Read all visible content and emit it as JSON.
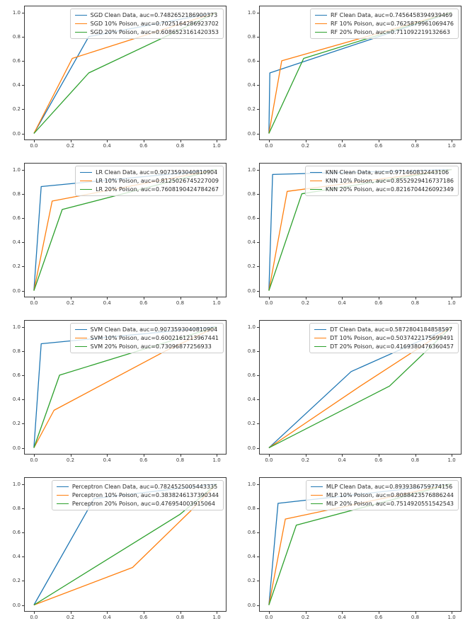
{
  "figure": {
    "background": "#ffffff",
    "layout": {
      "rows": 4,
      "cols": 2
    },
    "palette": {
      "clean": "#1f77b4",
      "poison_10": "#ff7f0e",
      "poison_20": "#2ca02c"
    },
    "spine_color": "#3a3a3a"
  },
  "chart_data": [
    {
      "type": "line",
      "model": "SGD",
      "row": 0,
      "col": 0,
      "title": "",
      "xlabel": "",
      "ylabel": "",
      "xlim": [
        -0.05,
        1.05
      ],
      "ylim": [
        -0.05,
        1.05
      ],
      "tick_values": [
        0,
        0.2,
        0.4,
        0.6,
        0.8,
        1.0
      ],
      "x_tick_labels": [
        "0.0",
        "0.2",
        "0.4",
        "0.6",
        "0.8",
        "1.0"
      ],
      "y_tick_labels": [
        "0.0",
        "0.2",
        "0.4",
        "0.6",
        "0.8",
        "1.0"
      ],
      "grid_on": false,
      "legend_location": "upper right",
      "series": [
        {
          "name": "SGD Clean Data",
          "auc": "0.7482652186900373",
          "label": "SGD Clean Data, auc=0.7482652186900373",
          "color": "#1f77b4",
          "points": [
            [
              0,
              0
            ],
            [
              0.3,
              0.8
            ],
            [
              1,
              1
            ]
          ]
        },
        {
          "name": "SGD 10% Poison",
          "auc": "0.7025164286923702",
          "label": "SGD 10% Poison, auc=0.7025164286923702",
          "color": "#ff7f0e",
          "points": [
            [
              0,
              0
            ],
            [
              0.21,
              0.62
            ],
            [
              1,
              1
            ]
          ]
        },
        {
          "name": "SGD 20% Poison",
          "auc": "0.6086523161420353",
          "label": "SGD 20% Poison, auc=0.6086523161420353",
          "color": "#2ca02c",
          "points": [
            [
              0,
              0
            ],
            [
              0.3,
              0.5
            ],
            [
              1,
              1
            ]
          ]
        }
      ]
    },
    {
      "type": "line",
      "model": "RF",
      "row": 0,
      "col": 1,
      "title": "",
      "xlabel": "",
      "ylabel": "",
      "xlim": [
        -0.05,
        1.05
      ],
      "ylim": [
        -0.05,
        1.05
      ],
      "tick_values": [
        0,
        0.2,
        0.4,
        0.6,
        0.8,
        1.0
      ],
      "x_tick_labels": [
        "0.0",
        "0.2",
        "0.4",
        "0.6",
        "0.8",
        "1.0"
      ],
      "y_tick_labels": [
        "0.0",
        "0.2",
        "0.4",
        "0.6",
        "0.8",
        "1.0"
      ],
      "grid_on": false,
      "legend_location": "upper right",
      "series": [
        {
          "name": "RF Clean Data",
          "auc": "0.7456458394939469",
          "label": "RF Clean Data, auc=0.7456458394939469",
          "color": "#1f77b4",
          "points": [
            [
              0,
              0
            ],
            [
              0.005,
              0.5
            ],
            [
              1,
              1
            ]
          ]
        },
        {
          "name": "RF 10% Poison",
          "auc": "0.7625879961069476",
          "label": "RF 10% Poison, auc=0.7625879961069476",
          "color": "#ff7f0e",
          "points": [
            [
              0,
              0
            ],
            [
              0.07,
              0.6
            ],
            [
              1,
              1
            ]
          ]
        },
        {
          "name": "RF 20% Poison",
          "auc": "0.711092219132663",
          "label": "RF 20% Poison, auc=0.711092219132663",
          "color": "#2ca02c",
          "points": [
            [
              0,
              0
            ],
            [
              0.19,
              0.62
            ],
            [
              1,
              1
            ]
          ]
        }
      ]
    },
    {
      "type": "line",
      "model": "LR",
      "row": 1,
      "col": 0,
      "title": "",
      "xlabel": "",
      "ylabel": "",
      "xlim": [
        -0.05,
        1.05
      ],
      "ylim": [
        -0.05,
        1.05
      ],
      "tick_values": [
        0,
        0.2,
        0.4,
        0.6,
        0.8,
        1.0
      ],
      "x_tick_labels": [
        "0.0",
        "0.2",
        "0.4",
        "0.6",
        "0.8",
        "1.0"
      ],
      "y_tick_labels": [
        "0.0",
        "0.2",
        "0.4",
        "0.6",
        "0.8",
        "1.0"
      ],
      "grid_on": false,
      "legend_location": "upper right",
      "series": [
        {
          "name": "LR Clean Data",
          "auc": "0.9073593040810904",
          "label": "LR Clean Data, auc=0.9073593040810904",
          "color": "#1f77b4",
          "points": [
            [
              0,
              0
            ],
            [
              0.04,
              0.86
            ],
            [
              1,
              1
            ]
          ]
        },
        {
          "name": "LR 10% Poison",
          "auc": "0.8125026745227009",
          "label": "LR 10% Poison, auc=0.8125026745227009",
          "color": "#ff7f0e",
          "points": [
            [
              0,
              0
            ],
            [
              0.1,
              0.74
            ],
            [
              1,
              1
            ]
          ]
        },
        {
          "name": "LR 20% Poison",
          "auc": "0.7608190424784267",
          "label": "LR 20% Poison, auc=0.7608190424784267",
          "color": "#2ca02c",
          "points": [
            [
              0,
              0
            ],
            [
              0.155,
              0.67
            ],
            [
              1,
              1
            ]
          ]
        }
      ]
    },
    {
      "type": "line",
      "model": "KNN",
      "row": 1,
      "col": 1,
      "title": "",
      "xlabel": "",
      "ylabel": "",
      "xlim": [
        -0.05,
        1.05
      ],
      "ylim": [
        -0.05,
        1.05
      ],
      "tick_values": [
        0,
        0.2,
        0.4,
        0.6,
        0.8,
        1.0
      ],
      "x_tick_labels": [
        "0.0",
        "0.2",
        "0.4",
        "0.6",
        "0.8",
        "1.0"
      ],
      "y_tick_labels": [
        "0.0",
        "0.2",
        "0.4",
        "0.6",
        "0.8",
        "1.0"
      ],
      "grid_on": false,
      "legend_location": "upper right",
      "series": [
        {
          "name": "KNN Clean Data",
          "auc": "0.971460832443106",
          "label": "KNN Clean Data, auc=0.971460832443106",
          "color": "#1f77b4",
          "points": [
            [
              0,
              0
            ],
            [
              0.02,
              0.96
            ],
            [
              1,
              1
            ]
          ]
        },
        {
          "name": "KNN 10% Poison",
          "auc": "0.8552929416737186",
          "label": "KNN 10% Poison, auc=0.8552929416737186",
          "color": "#ff7f0e",
          "points": [
            [
              0,
              0
            ],
            [
              0.1,
              0.82
            ],
            [
              1,
              1
            ]
          ]
        },
        {
          "name": "KNN 20% Poison",
          "auc": "0.8216704426092349",
          "label": "KNN 20% Poison, auc=0.8216704426092349",
          "color": "#2ca02c",
          "points": [
            [
              0,
              0
            ],
            [
              0.18,
              0.8
            ],
            [
              1,
              1
            ]
          ]
        }
      ]
    },
    {
      "type": "line",
      "model": "SVM",
      "row": 2,
      "col": 0,
      "title": "",
      "xlabel": "",
      "ylabel": "",
      "xlim": [
        -0.05,
        1.05
      ],
      "ylim": [
        -0.05,
        1.05
      ],
      "tick_values": [
        0,
        0.2,
        0.4,
        0.6,
        0.8,
        1.0
      ],
      "x_tick_labels": [
        "0.0",
        "0.2",
        "0.4",
        "0.6",
        "0.8",
        "1.0"
      ],
      "y_tick_labels": [
        "0.0",
        "0.2",
        "0.4",
        "0.6",
        "0.8",
        "1.0"
      ],
      "grid_on": false,
      "legend_location": "upper right",
      "series": [
        {
          "name": "SVM Clean Data",
          "auc": "0.9073593040810904",
          "label": "SVM Clean Data, auc=0.9073593040810904",
          "color": "#1f77b4",
          "points": [
            [
              0,
              0
            ],
            [
              0.04,
              0.86
            ],
            [
              1,
              1
            ]
          ]
        },
        {
          "name": "SVM 10% Poison",
          "auc": "0.6002161213967441",
          "label": "SVM 10% Poison, auc=0.6002161213967441",
          "color": "#ff7f0e",
          "points": [
            [
              0,
              0
            ],
            [
              0.11,
              0.31
            ],
            [
              0.72,
              0.8
            ],
            [
              1,
              1
            ]
          ]
        },
        {
          "name": "SVM 20% Poison",
          "auc": "0.73096877256933",
          "label": "SVM 20% Poison, auc=0.73096877256933",
          "color": "#2ca02c",
          "points": [
            [
              0,
              0
            ],
            [
              0.14,
              0.6
            ],
            [
              1,
              1
            ]
          ]
        }
      ]
    },
    {
      "type": "line",
      "model": "DT",
      "row": 2,
      "col": 1,
      "title": "",
      "xlabel": "",
      "ylabel": "",
      "xlim": [
        -0.05,
        1.05
      ],
      "ylim": [
        -0.05,
        1.05
      ],
      "tick_values": [
        0,
        0.2,
        0.4,
        0.6,
        0.8,
        1.0
      ],
      "x_tick_labels": [
        "0.0",
        "0.2",
        "0.4",
        "0.6",
        "0.8",
        "1.0"
      ],
      "y_tick_labels": [
        "0.0",
        "0.2",
        "0.4",
        "0.6",
        "0.8",
        "1.0"
      ],
      "grid_on": false,
      "legend_location": "upper right",
      "series": [
        {
          "name": "DT Clean Data",
          "auc": "0.5872804184858597",
          "label": "DT Clean Data, auc=0.5872804184858597",
          "color": "#1f77b4",
          "points": [
            [
              0,
              0
            ],
            [
              0.45,
              0.63
            ],
            [
              1,
              1
            ]
          ]
        },
        {
          "name": "DT 10% Poison",
          "auc": "0.5037422175699491",
          "label": "DT 10% Poison, auc=0.5037422175699491",
          "color": "#ff7f0e",
          "points": [
            [
              0,
              0
            ],
            [
              0.5,
              0.51
            ],
            [
              1,
              1
            ]
          ]
        },
        {
          "name": "DT 20% Poison",
          "auc": "0.4169380476360457",
          "label": "DT 20% Poison, auc=0.4169380476360457",
          "color": "#2ca02c",
          "points": [
            [
              0,
              0
            ],
            [
              0.66,
              0.51
            ],
            [
              1,
              1
            ]
          ]
        }
      ]
    },
    {
      "type": "line",
      "model": "Perceptron",
      "row": 3,
      "col": 0,
      "title": "",
      "xlabel": "",
      "ylabel": "",
      "xlim": [
        -0.05,
        1.05
      ],
      "ylim": [
        -0.05,
        1.05
      ],
      "tick_values": [
        0,
        0.2,
        0.4,
        0.6,
        0.8,
        1.0
      ],
      "x_tick_labels": [
        "0.0",
        "0.2",
        "0.4",
        "0.6",
        "0.8",
        "1.0"
      ],
      "y_tick_labels": [
        "0.0",
        "0.2",
        "0.4",
        "0.6",
        "0.8",
        "1.0"
      ],
      "grid_on": false,
      "legend_location": "upper right",
      "series": [
        {
          "name": "Perceptron Clean Data",
          "auc": "0.7824525005443335",
          "label": "Perceptron Clean Data, auc=0.7824525005443335",
          "color": "#1f77b4",
          "points": [
            [
              0,
              0
            ],
            [
              0.33,
              0.88
            ],
            [
              1,
              1
            ]
          ]
        },
        {
          "name": "Perceptron 10% Poison",
          "auc": "0.3838246137390344",
          "label": "Perceptron 10% Poison, auc=0.3838246137390344",
          "color": "#ff7f0e",
          "points": [
            [
              0,
              0
            ],
            [
              0.54,
              0.31
            ],
            [
              0.86,
              0.78
            ],
            [
              1,
              1
            ]
          ]
        },
        {
          "name": "Perceptron 20% Poison",
          "auc": "0.476954003915064",
          "label": "Perceptron 20% Poison, auc=0.476954003915064",
          "color": "#2ca02c",
          "points": [
            [
              0,
              0
            ],
            [
              0.8,
              0.75
            ],
            [
              1,
              1
            ]
          ]
        }
      ]
    },
    {
      "type": "line",
      "model": "MLP",
      "row": 3,
      "col": 1,
      "title": "",
      "xlabel": "",
      "ylabel": "",
      "xlim": [
        -0.05,
        1.05
      ],
      "ylim": [
        -0.05,
        1.05
      ],
      "tick_values": [
        0,
        0.2,
        0.4,
        0.6,
        0.8,
        1.0
      ],
      "x_tick_labels": [
        "0.0",
        "0.2",
        "0.4",
        "0.6",
        "0.8",
        "1.0"
      ],
      "y_tick_labels": [
        "0.0",
        "0.2",
        "0.4",
        "0.6",
        "0.8",
        "1.0"
      ],
      "grid_on": false,
      "legend_location": "upper right",
      "series": [
        {
          "name": "MLP Clean Data",
          "auc": "0.8939386759774156",
          "label": "MLP Clean Data, auc=0.8939386759774156",
          "color": "#1f77b4",
          "points": [
            [
              0,
              0
            ],
            [
              0.05,
              0.84
            ],
            [
              1,
              1
            ]
          ]
        },
        {
          "name": "MLP 10% Poison",
          "auc": "0.8088423576886244",
          "label": "MLP 10% Poison, auc=0.8088423576886244",
          "color": "#ff7f0e",
          "points": [
            [
              0,
              0
            ],
            [
              0.09,
              0.71
            ],
            [
              1,
              1
            ]
          ]
        },
        {
          "name": "MLP 20% Poison",
          "auc": "0.7514920551542543",
          "label": "MLP 20% Poison, auc=0.7514920551542543",
          "color": "#2ca02c",
          "points": [
            [
              0,
              0
            ],
            [
              0.15,
              0.66
            ],
            [
              1,
              1
            ]
          ]
        }
      ]
    }
  ]
}
